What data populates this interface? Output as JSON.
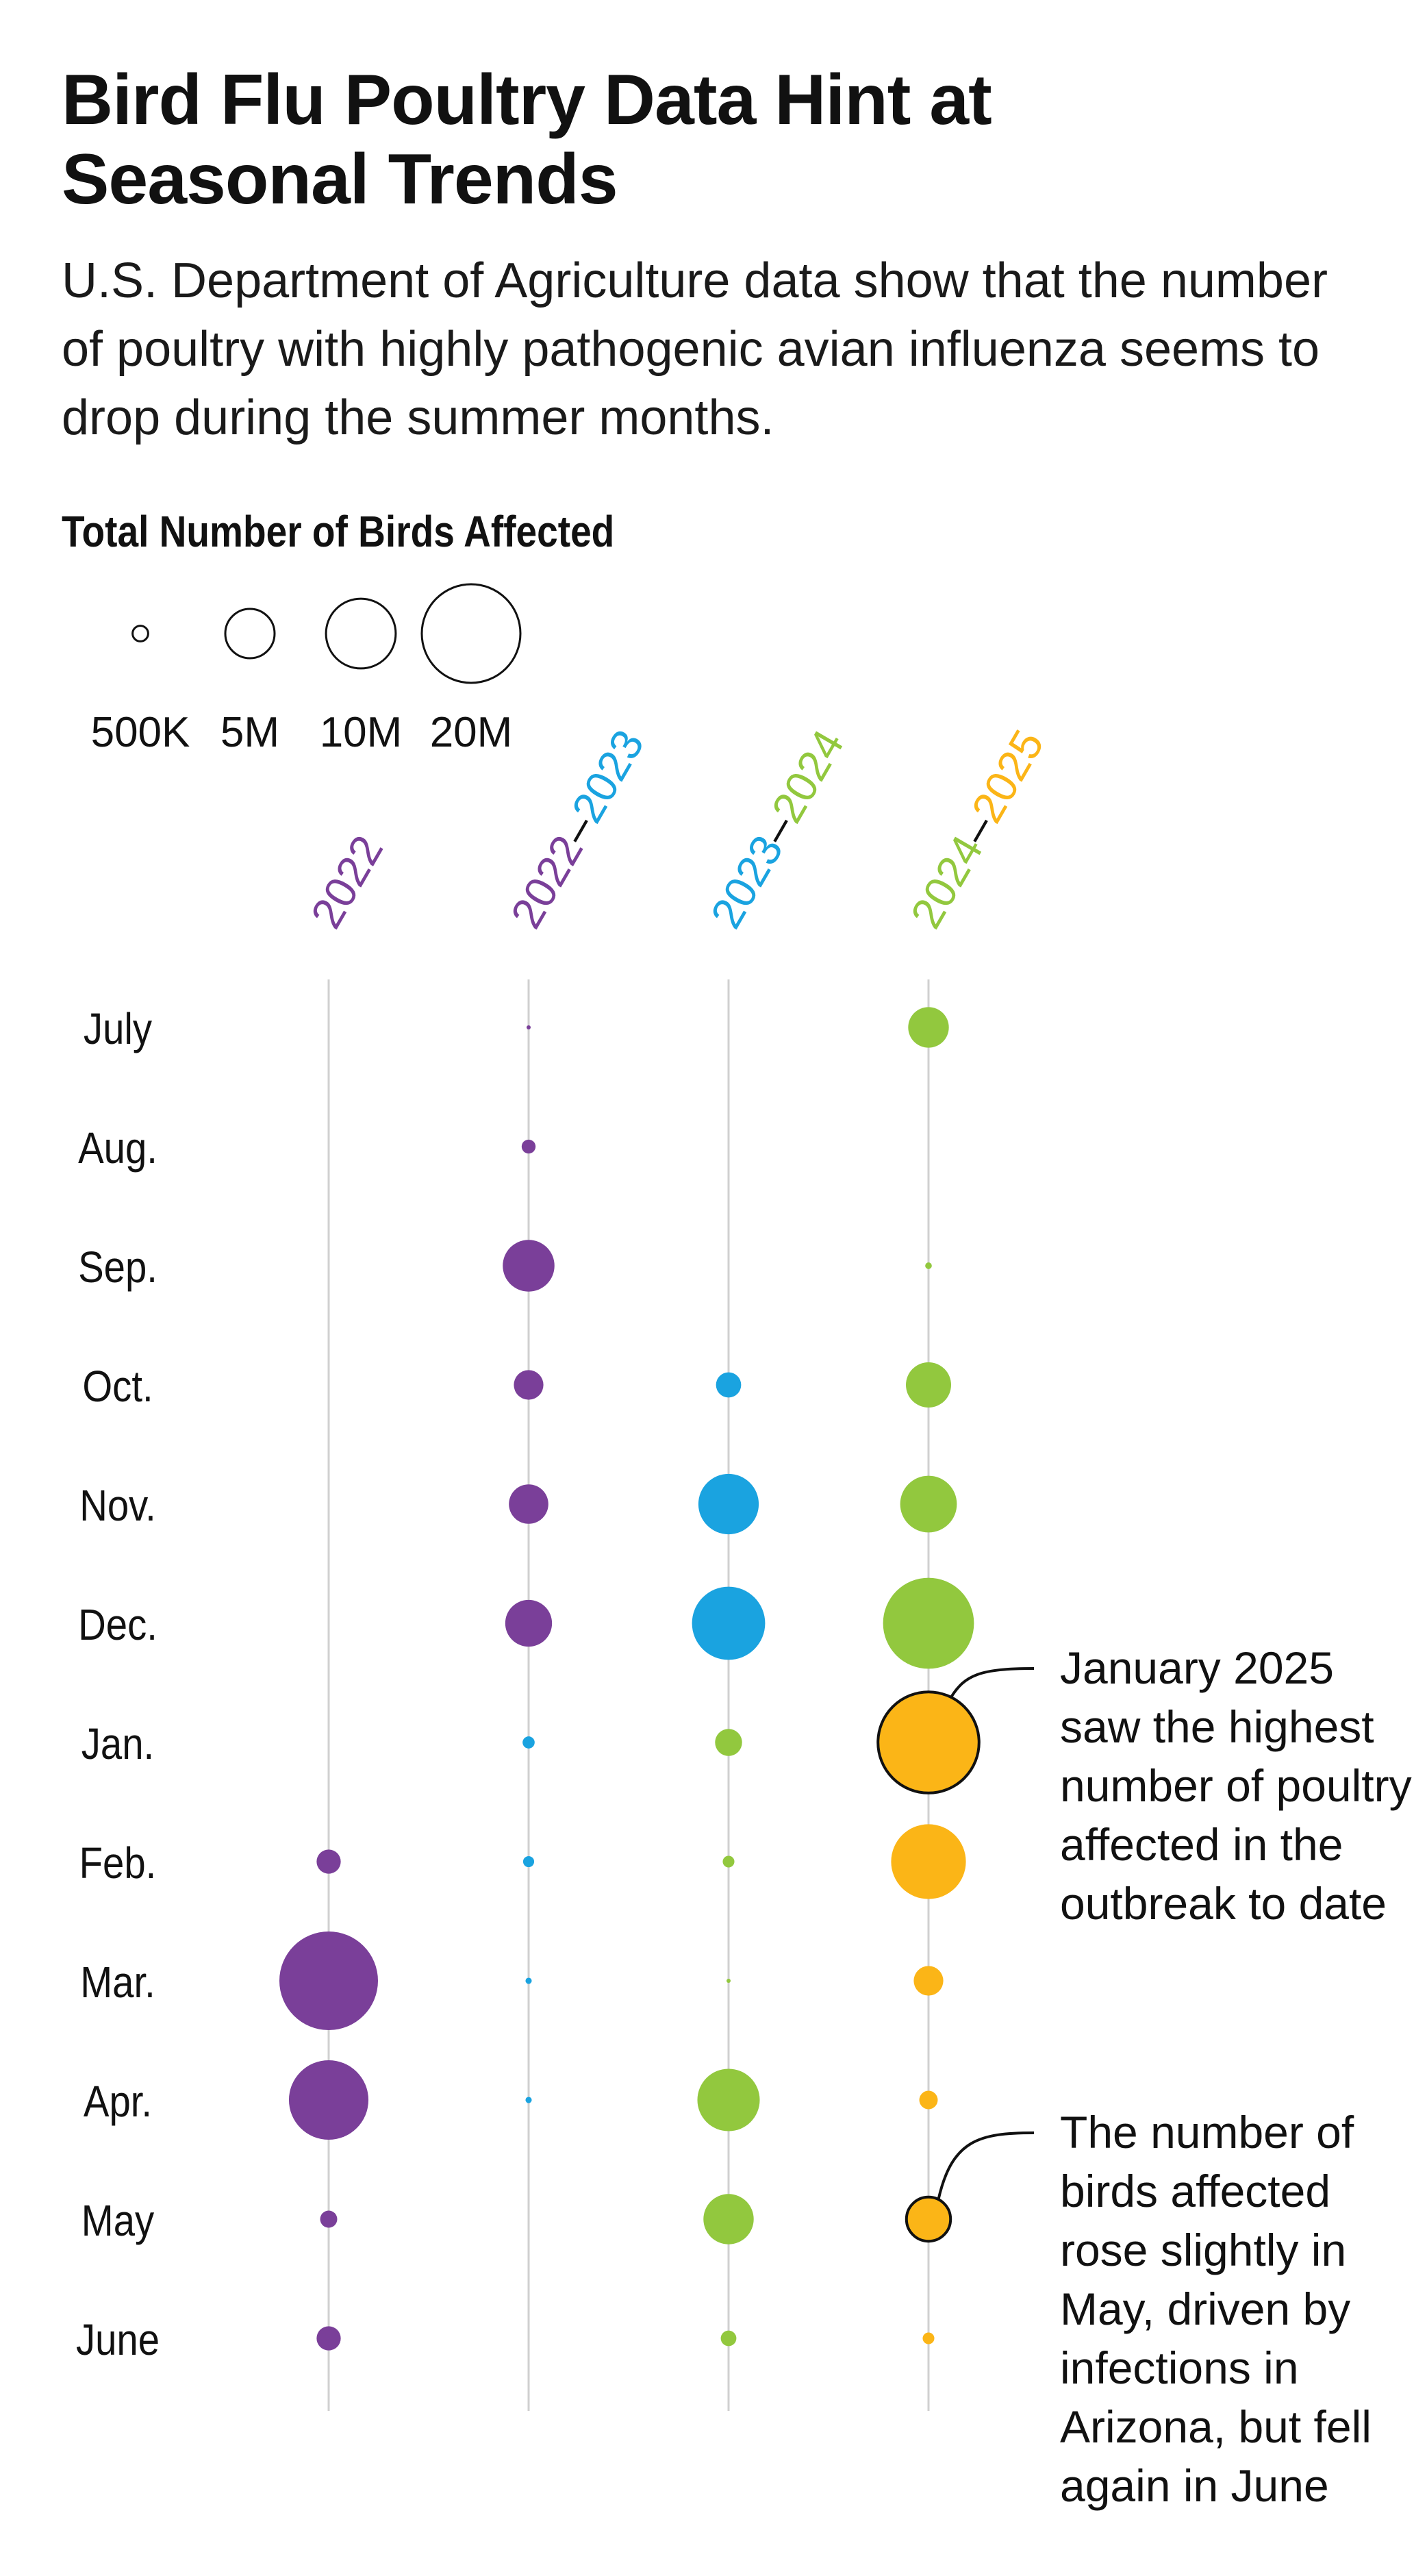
{
  "title": "Bird Flu Poultry Data Hint at Seasonal Trends",
  "subtitle": "U.S. Department of Agriculture data show that the number of poultry with highly pathogenic avian influenza seems to drop during the summer months.",
  "legend": {
    "title": "Total Number of Birds Affected",
    "items": [
      {
        "label": "500K",
        "value": 500000
      },
      {
        "label": "5M",
        "value": 5000000
      },
      {
        "label": "10M",
        "value": 10000000
      },
      {
        "label": "20M",
        "value": 20000000
      }
    ]
  },
  "colors": {
    "2022": "#7a3f99",
    "2023": "#1aa3e0",
    "2024": "#92c83e",
    "2025": "#fbb517",
    "axis": "#d0d0d0",
    "dash": "#111111"
  },
  "annotations": [
    {
      "text": "January 2025 saw the highest number of poultry affected in the outbreak to date",
      "column": 3,
      "month": "Jan."
    },
    {
      "text": "The number of birds affected rose slightly in May, driven by infections in Arizona, but fell again in June",
      "column": 3,
      "month": "May"
    }
  ],
  "chart_data": {
    "type": "bubble",
    "title": "Bird Flu Poultry Data Hint at Seasonal Trends",
    "size_measure": "Total Number of Birds Affected",
    "months": [
      "July",
      "Aug.",
      "Sep.",
      "Oct.",
      "Nov.",
      "Dec.",
      "Jan.",
      "Feb.",
      "Mar.",
      "Apr.",
      "May",
      "June"
    ],
    "series": [
      {
        "name": "2022",
        "label_parts": [
          {
            "text": "2022",
            "year": "2022"
          }
        ],
        "points": [
          {
            "month": "Feb.",
            "value": 1200000,
            "year": "2022"
          },
          {
            "month": "Mar.",
            "value": 20000000,
            "year": "2022"
          },
          {
            "month": "Apr.",
            "value": 13000000,
            "year": "2022"
          },
          {
            "month": "May",
            "value": 600000,
            "year": "2022"
          },
          {
            "month": "June",
            "value": 1200000,
            "year": "2022"
          }
        ]
      },
      {
        "name": "2022–2023",
        "label_parts": [
          {
            "text": "2022",
            "year": "2022"
          },
          {
            "text": "–",
            "year": "dash"
          },
          {
            "text": "2023",
            "year": "2023"
          }
        ],
        "points": [
          {
            "month": "July",
            "value": 30000,
            "year": "2022"
          },
          {
            "month": "Aug.",
            "value": 400000,
            "year": "2022"
          },
          {
            "month": "Sep.",
            "value": 5500000,
            "year": "2022"
          },
          {
            "month": "Oct.",
            "value": 1800000,
            "year": "2022"
          },
          {
            "month": "Nov.",
            "value": 3200000,
            "year": "2022"
          },
          {
            "month": "Dec.",
            "value": 4500000,
            "year": "2022"
          },
          {
            "month": "Jan.",
            "value": 300000,
            "year": "2023"
          },
          {
            "month": "Feb.",
            "value": 250000,
            "year": "2023"
          },
          {
            "month": "Mar.",
            "value": 80000,
            "year": "2023"
          },
          {
            "month": "Apr.",
            "value": 80000,
            "year": "2023"
          }
        ]
      },
      {
        "name": "2023–2024",
        "label_parts": [
          {
            "text": "2023",
            "year": "2023"
          },
          {
            "text": "–",
            "year": "dash"
          },
          {
            "text": "2024",
            "year": "2024"
          }
        ],
        "points": [
          {
            "month": "Oct.",
            "value": 1300000,
            "year": "2023"
          },
          {
            "month": "Nov.",
            "value": 7500000,
            "year": "2023"
          },
          {
            "month": "Dec.",
            "value": 11000000,
            "year": "2023"
          },
          {
            "month": "Jan.",
            "value": 1500000,
            "year": "2024"
          },
          {
            "month": "Feb.",
            "value": 280000,
            "year": "2024"
          },
          {
            "month": "Mar.",
            "value": 20000,
            "year": "2024"
          },
          {
            "month": "Apr.",
            "value": 8000000,
            "year": "2024"
          },
          {
            "month": "May",
            "value": 5200000,
            "year": "2024"
          },
          {
            "month": "June",
            "value": 500000,
            "year": "2024"
          }
        ]
      },
      {
        "name": "2024–2025",
        "label_parts": [
          {
            "text": "2024",
            "year": "2024"
          },
          {
            "text": "–",
            "year": "dash"
          },
          {
            "text": "2025",
            "year": "2025"
          }
        ],
        "points": [
          {
            "month": "July",
            "value": 3400000,
            "year": "2024"
          },
          {
            "month": "Aug.",
            "value": 0,
            "year": "2024"
          },
          {
            "month": "Sep.",
            "value": 90000,
            "year": "2024"
          },
          {
            "month": "Oct.",
            "value": 4200000,
            "year": "2024"
          },
          {
            "month": "Nov.",
            "value": 6600000,
            "year": "2024"
          },
          {
            "month": "Dec.",
            "value": 17000000,
            "year": "2024"
          },
          {
            "month": "Jan.",
            "value": 21000000,
            "year": "2025"
          },
          {
            "month": "Feb.",
            "value": 11500000,
            "year": "2025"
          },
          {
            "month": "Mar.",
            "value": 1800000,
            "year": "2025"
          },
          {
            "month": "Apr.",
            "value": 700000,
            "year": "2025"
          },
          {
            "month": "May",
            "value": 4000000,
            "year": "2025"
          },
          {
            "month": "June",
            "value": 280000,
            "year": "2025"
          }
        ]
      }
    ]
  }
}
